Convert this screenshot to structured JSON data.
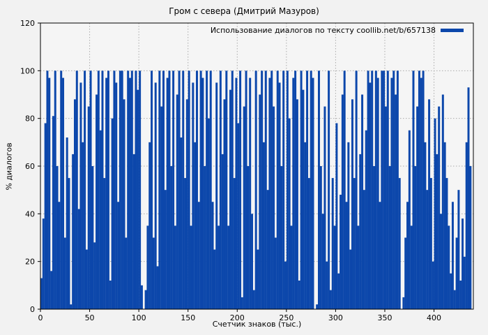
{
  "chart_data": {
    "type": "bar",
    "title": "Гром с севера (Дмитрий Мазуров)",
    "legend_label": "Использование диалогов по тексту coollib.net/b/657138",
    "legend_color": "#0c47ab",
    "xlabel": "Счетчик знаков (тыс.)",
    "ylabel": "% диалогов",
    "bar_color": "#0c47ab",
    "background_color": "#f2f2f2",
    "plot_background_color": "#f5f5f5",
    "grid": true,
    "grid_color": "#aaaaaa",
    "xlim": [
      0,
      440
    ],
    "ylim": [
      0,
      120
    ],
    "xticks": [
      0,
      50,
      100,
      150,
      200,
      250,
      300,
      350,
      400
    ],
    "yticks": [
      0,
      20,
      40,
      60,
      80,
      100,
      120
    ],
    "x_start": 0,
    "x_step": 2,
    "values": [
      13,
      38,
      78,
      100,
      97,
      16,
      81,
      100,
      60,
      45,
      100,
      97,
      30,
      72,
      55,
      2,
      65,
      88,
      100,
      42,
      95,
      70,
      100,
      25,
      85,
      100,
      60,
      28,
      90,
      100,
      75,
      100,
      55,
      97,
      100,
      12,
      80,
      100,
      95,
      45,
      100,
      100,
      88,
      30,
      100,
      97,
      100,
      65,
      100,
      92,
      100,
      10,
      0,
      8,
      35,
      70,
      100,
      30,
      95,
      18,
      100,
      85,
      100,
      50,
      97,
      100,
      60,
      100,
      35,
      90,
      100,
      72,
      100,
      55,
      88,
      100,
      35,
      95,
      70,
      100,
      45,
      100,
      97,
      60,
      100,
      80,
      100,
      45,
      25,
      95,
      35,
      100,
      65,
      88,
      100,
      35,
      92,
      100,
      55,
      97,
      78,
      100,
      5,
      85,
      100,
      60,
      97,
      40,
      8,
      100,
      25,
      90,
      100,
      70,
      100,
      50,
      97,
      100,
      85,
      30,
      100,
      95,
      60,
      100,
      20,
      100,
      80,
      35,
      97,
      100,
      88,
      12,
      100,
      92,
      70,
      100,
      55,
      100,
      97,
      0,
      2,
      100,
      60,
      40,
      85,
      20,
      100,
      8,
      55,
      35,
      78,
      15,
      48,
      90,
      100,
      45,
      70,
      25,
      88,
      55,
      100,
      35,
      65,
      90,
      50,
      75,
      100,
      95,
      100,
      60,
      100,
      97,
      45,
      100,
      100,
      85,
      100,
      60,
      97,
      100,
      90,
      100,
      55,
      0,
      5,
      30,
      45,
      75,
      35,
      100,
      60,
      85,
      100,
      97,
      100,
      70,
      50,
      88,
      55,
      20,
      80,
      65,
      85,
      40,
      90,
      70,
      55,
      35,
      15,
      45,
      8,
      30,
      50,
      12,
      38,
      22,
      70,
      93,
      60
    ]
  }
}
